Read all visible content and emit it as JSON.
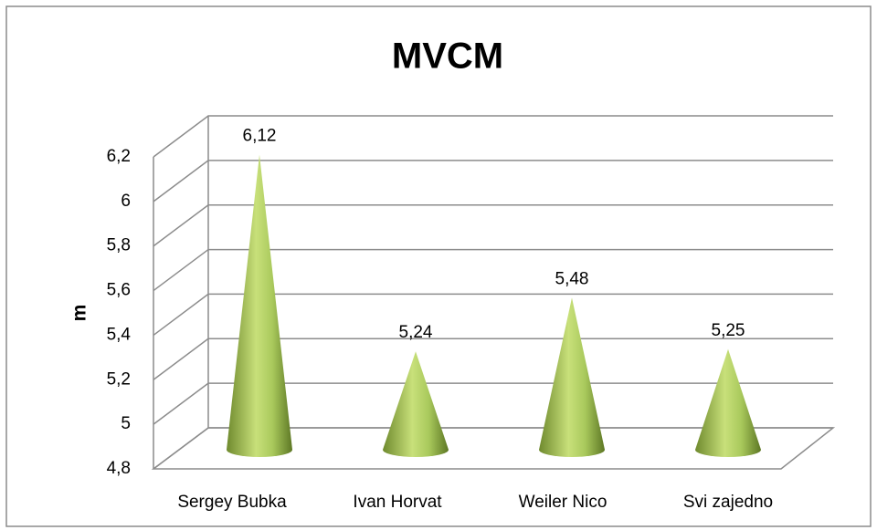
{
  "chart_data": {
    "type": "cone",
    "title": "MVCM",
    "y_label": "m",
    "categories": [
      "Sergey Bubka",
      "Ivan Horvat",
      "Weiler Nico",
      "Svi zajedno"
    ],
    "values": [
      6.12,
      5.24,
      5.48,
      5.25
    ],
    "value_labels": [
      "6,12",
      "5,24",
      "5,48",
      "5,25"
    ],
    "color": "#9bbb59",
    "ylim": [
      4.8,
      6.2
    ],
    "yticks": [
      {
        "value": 4.8,
        "label": "4,8"
      },
      5,
      {
        "value": 5.2,
        "label": "5,2"
      },
      {
        "value": 5.4,
        "label": "5,4"
      },
      {
        "value": 5.6,
        "label": "5,6"
      },
      {
        "value": 5.8,
        "label": "5,8"
      },
      6,
      {
        "value": 6.2,
        "label": "6,2"
      }
    ],
    "grid": true
  }
}
